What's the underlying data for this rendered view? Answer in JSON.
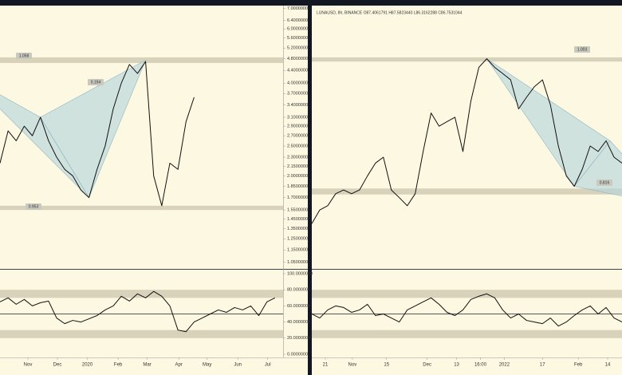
{
  "chart_data": [
    {
      "type": "line",
      "log": true,
      "color": "#111111",
      "xlim": [
        0,
        35
      ],
      "ylim": [
        1.01,
        7.1
      ],
      "values": [
        2.2,
        2.8,
        2.6,
        2.9,
        2.7,
        3.1,
        2.6,
        2.3,
        2.1,
        2.0,
        1.8,
        1.7,
        2.1,
        2.5,
        3.3,
        4.0,
        4.6,
        4.3,
        4.7,
        2.0,
        1.6,
        2.2,
        2.1,
        3.0,
        3.6
      ],
      "yticks": [
        {
          "value": 7.0,
          "label": "7.0000000"
        },
        {
          "value": 6.4,
          "label": "6.4000000"
        },
        {
          "value": 6.0,
          "label": "6.0000000"
        },
        {
          "value": 5.6,
          "label": "5.6000000"
        },
        {
          "value": 5.2,
          "label": "5.2000000"
        },
        {
          "value": 4.8,
          "label": "4.8000000"
        },
        {
          "value": 4.4,
          "label": "4.4000000"
        },
        {
          "value": 4.0,
          "label": "4.0000000"
        },
        {
          "value": 3.7,
          "label": "3.7000000"
        },
        {
          "value": 3.4,
          "label": "3.4000000"
        },
        {
          "value": 3.1,
          "label": "3.1000000"
        },
        {
          "value": 2.9,
          "label": "2.9000000"
        },
        {
          "value": 2.7,
          "label": "2.7000000"
        },
        {
          "value": 2.5,
          "label": "2.5000000"
        },
        {
          "value": 2.3,
          "label": "2.3000000"
        },
        {
          "value": 2.15,
          "label": "2.1500000"
        },
        {
          "value": 2.0,
          "label": "2.0000000"
        },
        {
          "value": 1.85,
          "label": "1.8500000"
        },
        {
          "value": 1.7,
          "label": "1.7000000"
        },
        {
          "value": 1.55,
          "label": "1.5500000"
        },
        {
          "value": 1.45,
          "label": "1.4500000"
        },
        {
          "value": 1.35,
          "label": "1.3500000"
        },
        {
          "value": 1.25,
          "label": "1.2500000"
        },
        {
          "value": 1.15,
          "label": "1.1500000"
        },
        {
          "value": 1.05,
          "label": "1.0500000"
        }
      ],
      "zones": [
        [
          4.65,
          4.85
        ],
        [
          1.55,
          1.6
        ]
      ],
      "zone_color": "#d8d2bb",
      "pattern": [
        [
          -4,
          4.2
        ],
        [
          5,
          3.1
        ],
        [
          11,
          1.7
        ],
        [
          18,
          4.75
        ]
      ],
      "pattern_color": "#b9d5dc",
      "annotations": [
        "1.058",
        "0.194",
        "0.953"
      ]
    },
    {
      "type": "line",
      "color": "#111111",
      "xlim": [
        0,
        35
      ],
      "ylim": [
        -4,
        103
      ],
      "values": [
        65,
        70,
        62,
        68,
        60,
        64,
        66,
        45,
        38,
        42,
        40,
        44,
        48,
        55,
        60,
        72,
        66,
        75,
        70,
        78,
        72,
        60,
        30,
        28,
        40,
        45,
        50,
        55,
        52,
        58,
        55,
        60,
        48,
        65,
        70
      ],
      "yticks": [
        {
          "value": 100,
          "label": "100.0000000"
        },
        {
          "value": 80,
          "label": "80.0000000"
        },
        {
          "value": 60,
          "label": "60.0000000"
        },
        {
          "value": 40,
          "label": "40.0000000"
        },
        {
          "value": 20,
          "label": "20.0000000"
        },
        {
          "value": 0,
          "label": "0.0000000"
        }
      ],
      "xticks": [
        {
          "value": 3.45,
          "label": "Nov"
        },
        {
          "value": 7.1,
          "label": "Dec"
        },
        {
          "value": 10.8,
          "label": "2020"
        },
        {
          "value": 14.6,
          "label": "Feb"
        },
        {
          "value": 18.2,
          "label": "Mar"
        },
        {
          "value": 22.1,
          "label": "Apr"
        },
        {
          "value": 25.6,
          "label": "May"
        },
        {
          "value": 29.4,
          "label": "Jun"
        },
        {
          "value": 33.1,
          "label": "Jul"
        }
      ],
      "zones": [
        [
          70,
          80
        ],
        [
          20,
          30
        ]
      ],
      "zone_color": "#d8d2bb",
      "reference": 50
    },
    {
      "type": "line",
      "log": true,
      "color": "#111111",
      "title": "LUNAUSD, 8h, BINANCE O87.4061791 H87.5823440 L86.3162288 C86.7531044",
      "xlim": [
        0,
        39
      ],
      "ylim": [
        1.01,
        7.1
      ],
      "values": [
        1.4,
        1.55,
        1.6,
        1.75,
        1.8,
        1.75,
        1.8,
        2.0,
        2.2,
        2.3,
        1.8,
        1.7,
        1.6,
        1.75,
        2.4,
        3.2,
        2.9,
        3.0,
        3.1,
        2.4,
        3.5,
        4.5,
        4.8,
        4.5,
        4.3,
        4.1,
        3.3,
        3.6,
        3.9,
        4.1,
        3.4,
        2.5,
        2.0,
        1.85,
        2.1,
        2.5,
        2.4,
        2.6,
        2.3,
        2.2
      ],
      "zones": [
        [
          4.7,
          4.85
        ],
        [
          1.74,
          1.82
        ]
      ],
      "zone_color": "#d8d2bb",
      "pattern": [
        [
          22,
          4.8
        ],
        [
          33,
          1.85
        ],
        [
          37.5,
          2.6
        ],
        [
          45,
          1.6
        ]
      ],
      "pattern_color": "#b9d5dc",
      "annotations": [
        "1.003",
        "0.816"
      ]
    },
    {
      "type": "line",
      "color": "#111111",
      "xlim": [
        0,
        39
      ],
      "ylim": [
        -4,
        103
      ],
      "values": [
        50,
        45,
        55,
        60,
        58,
        52,
        55,
        62,
        48,
        50,
        45,
        40,
        55,
        60,
        65,
        70,
        62,
        52,
        48,
        55,
        68,
        72,
        75,
        70,
        55,
        45,
        50,
        42,
        40,
        38,
        45,
        35,
        40,
        48,
        55,
        60,
        50,
        58,
        45,
        40
      ],
      "xticks": [
        {
          "value": 1.7,
          "label": "21"
        },
        {
          "value": 5.1,
          "label": "Nov"
        },
        {
          "value": 9.4,
          "label": "15"
        },
        {
          "value": 14.5,
          "label": "Dec"
        },
        {
          "value": 18.2,
          "label": "13"
        },
        {
          "value": 21.2,
          "label": "16:00"
        },
        {
          "value": 24.2,
          "label": "2022"
        },
        {
          "value": 29,
          "label": "17"
        },
        {
          "value": 33.5,
          "label": "Feb"
        },
        {
          "value": 37.2,
          "label": "14"
        }
      ],
      "zones": [
        [
          70,
          80
        ],
        [
          20,
          30
        ]
      ],
      "zone_color": "#d8d2bb",
      "reference": 50
    }
  ]
}
